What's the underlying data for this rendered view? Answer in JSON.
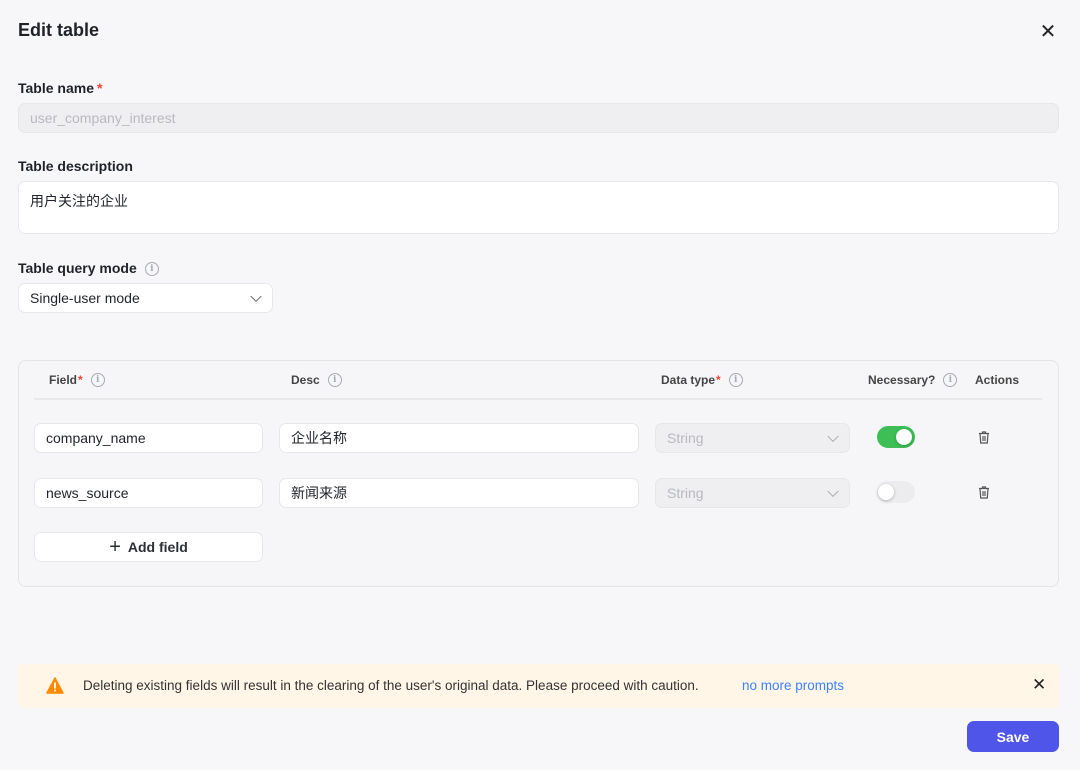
{
  "dialog": {
    "title": "Edit table",
    "close_icon": "close-icon"
  },
  "table_name": {
    "label": "Table name",
    "required_mark": "*",
    "value": "user_company_interest"
  },
  "table_description": {
    "label": "Table description",
    "value": "用户关注的企业"
  },
  "query_mode": {
    "label": "Table query mode",
    "selected": "Single-user mode"
  },
  "fields_table": {
    "headers": {
      "field": "Field",
      "desc": "Desc",
      "data_type": "Data type",
      "necessary": "Necessary?",
      "actions": "Actions",
      "required_mark": "*"
    },
    "rows": [
      {
        "field": "company_name",
        "desc": "企业名称",
        "data_type": "String",
        "necessary": true
      },
      {
        "field": "news_source",
        "desc": "新闻来源",
        "data_type": "String",
        "necessary": false
      }
    ],
    "add_field_label": "Add field"
  },
  "alert": {
    "message": "Deleting existing fields will result in the clearing of the user's original data. Please proceed with caution.",
    "link": "no more prompts"
  },
  "footer": {
    "save_label": "Save"
  },
  "colors": {
    "accent": "#4f55e8",
    "toggle_on": "#3dbf55",
    "warning": "#ff8a00",
    "link": "#3b82f6",
    "alert_bg": "#fff6e8"
  }
}
